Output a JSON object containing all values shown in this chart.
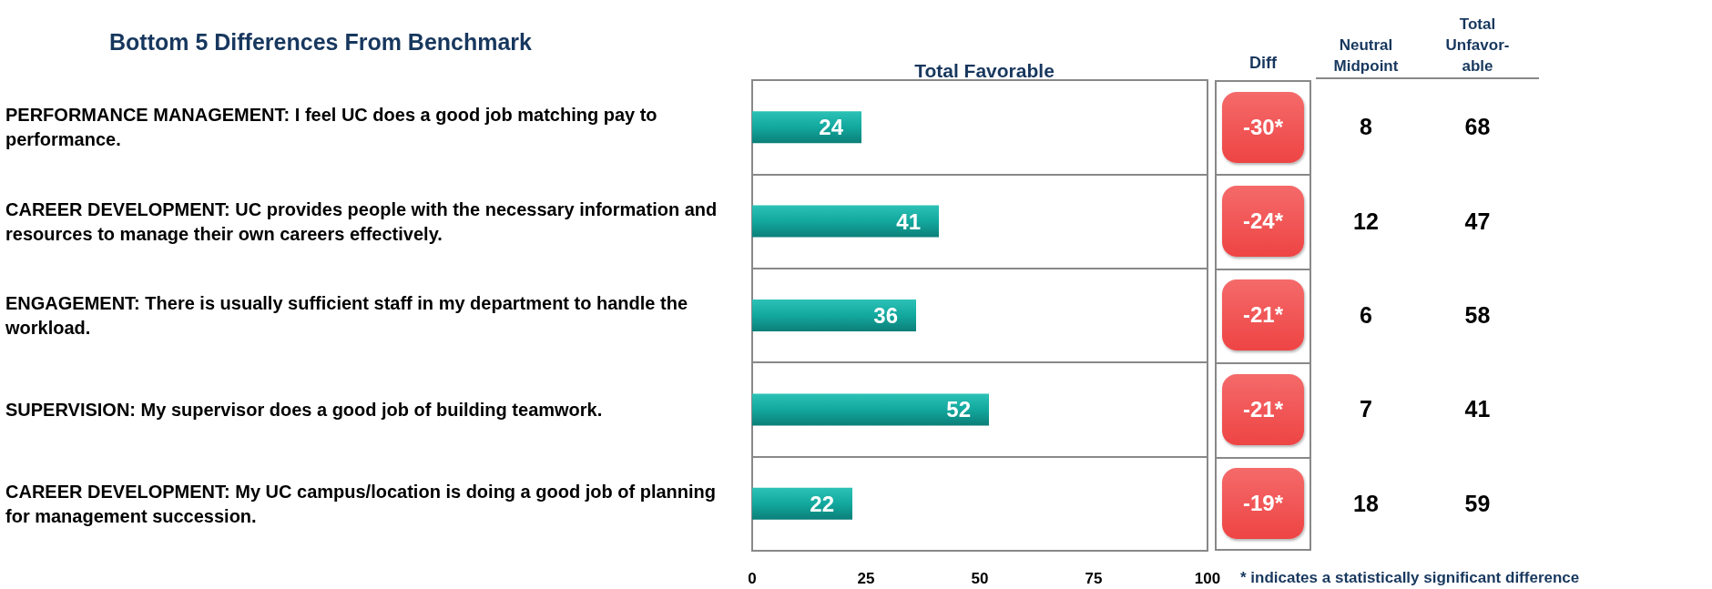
{
  "chart_data": [
    {
      "type": "bar",
      "orientation": "horizontal",
      "title": "Bottom 5 Differences From Benchmark",
      "xlabel": "Total Favorable",
      "categories": [
        "PERFORMANCE MANAGEMENT: I feel UC does a good job matching pay to performance.",
        "CAREER DEVELOPMENT: UC provides people with the necessary information and resources to manage their own careers effectively.",
        "ENGAGEMENT: There is usually sufficient staff in my department to handle the workload.",
        "SUPERVISION: My supervisor does a good job of building teamwork.",
        "CAREER DEVELOPMENT: My UC campus/location is doing a good job of planning for management succession."
      ],
      "values": [
        24,
        41,
        36,
        52,
        22
      ],
      "color": "#13a89e",
      "data_labels": true,
      "xlim": [
        0,
        100
      ],
      "xticks": [
        0,
        25,
        50,
        75,
        100
      ],
      "grid": false,
      "annotations": [
        "* indicates a statistically significant difference"
      ]
    },
    {
      "type": "other",
      "title": "Diff",
      "color": "#ee4444",
      "annotations": [
        "-30*",
        "-24*",
        "-21*",
        "-21*",
        "-19*"
      ]
    },
    {
      "type": "other",
      "title": "Neutral\nMidpoint",
      "annotations": [
        "8",
        "12",
        "6",
        "7",
        "18"
      ]
    },
    {
      "type": "other",
      "title": "Total\nUnfavor-\nable",
      "annotations": [
        "68",
        "47",
        "58",
        "41",
        "59"
      ]
    }
  ]
}
